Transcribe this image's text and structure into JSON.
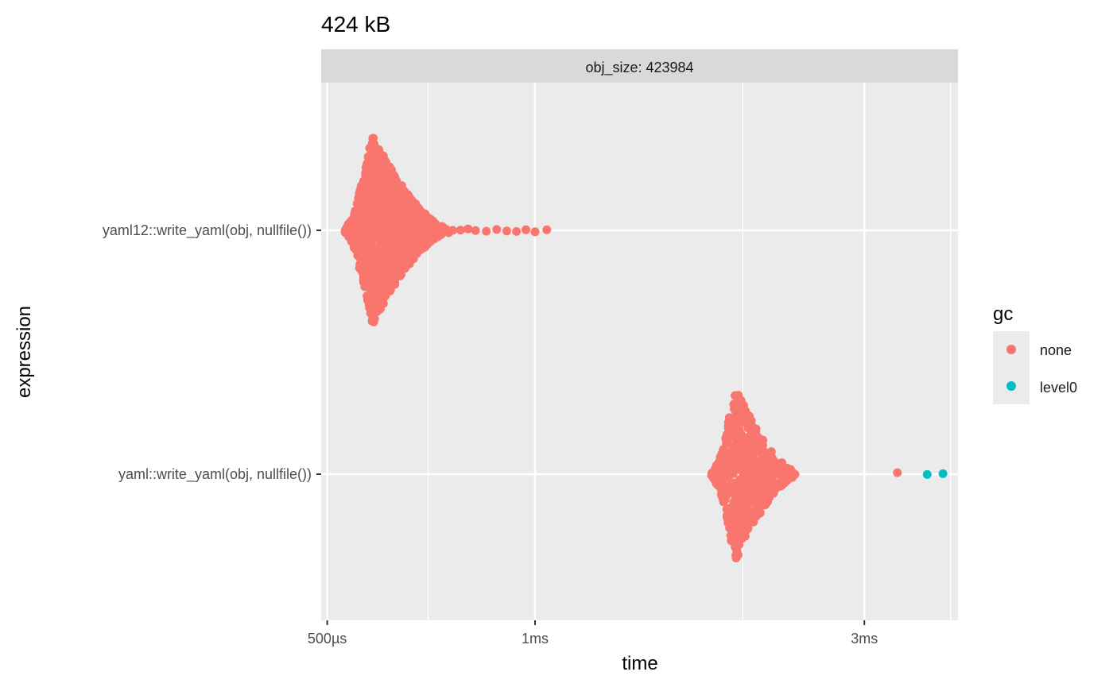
{
  "chart_data": {
    "type": "scatter",
    "title": "424 kB",
    "facet_label": "obj_size: 423984",
    "xlabel": "time",
    "ylabel": "expression",
    "x_scale": "log10",
    "x_unit": "seconds",
    "xlim": [
      0.00049,
      0.0041
    ],
    "x_ticks": [
      {
        "value": 0.0005,
        "label": "500µs"
      },
      {
        "value": 0.001,
        "label": "1ms"
      },
      {
        "value": 0.003,
        "label": "3ms"
      }
    ],
    "x_minor_ticks": [
      0.0007,
      0.002,
      0.004
    ],
    "categories": [
      "yaml12::write_yaml(obj, nullfile())",
      "yaml::write_yaml(obj, nullfile())"
    ],
    "grid": true,
    "legend": {
      "title": "gc",
      "position": "right",
      "entries": [
        {
          "name": "none",
          "color": "#F8766D"
        },
        {
          "name": "level0",
          "color": "#00BFC4"
        }
      ]
    },
    "series": [
      {
        "expression": "yaml12::write_yaml(obj, nullfile())",
        "gc": "none",
        "distribution": {
          "mode": 0.00058,
          "min": 0.00053,
          "body_max": 0.00075,
          "tail": [
            0.00076,
            0.00078,
            0.0008,
            0.00082,
            0.00085,
            0.00088,
            0.00091,
            0.00094,
            0.00097,
            0.001,
            0.00104
          ]
        }
      },
      {
        "expression": "yaml::write_yaml(obj, nullfile())",
        "gc": "none",
        "distribution": {
          "mode": 0.00195,
          "min": 0.0018,
          "body_max": 0.0024,
          "tail": [
            0.00335
          ]
        }
      },
      {
        "expression": "yaml::write_yaml(obj, nullfile())",
        "gc": "level0",
        "points": [
          0.0037,
          0.0039
        ]
      }
    ]
  }
}
